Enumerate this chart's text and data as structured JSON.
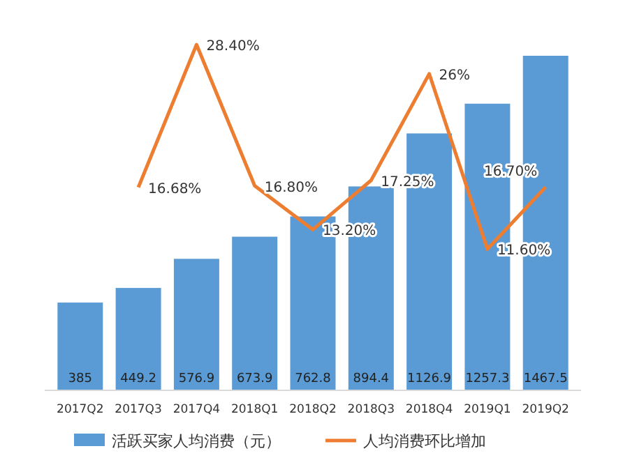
{
  "chart_data": {
    "type": "bar",
    "categories": [
      "2017Q2",
      "2017Q3",
      "2017Q4",
      "2018Q1",
      "2018Q2",
      "2018Q3",
      "2018Q4",
      "2019Q1",
      "2019Q2"
    ],
    "series": [
      {
        "name": "活跃买家人均消费（元）",
        "color": "#5b9bd5",
        "values": [
          385,
          449.2,
          576.9,
          673.9,
          762.8,
          894.4,
          1126.9,
          1257.3,
          1467.5
        ]
      },
      {
        "name": "人均消费环比增加",
        "type": "line",
        "axis": "y2",
        "color": "#ed7d31",
        "values": [
          null,
          16.68,
          28.4,
          16.8,
          13.2,
          17.25,
          26,
          11.6,
          16.7
        ],
        "value_labels": [
          null,
          "16.68%",
          "28.40%",
          "16.80%",
          "13.20%",
          "17.25%",
          "26%",
          "11.60%",
          "16.70%"
        ]
      }
    ],
    "data_labels": true,
    "legend": "bottom",
    "marker": "none",
    "line_style": "solid"
  }
}
